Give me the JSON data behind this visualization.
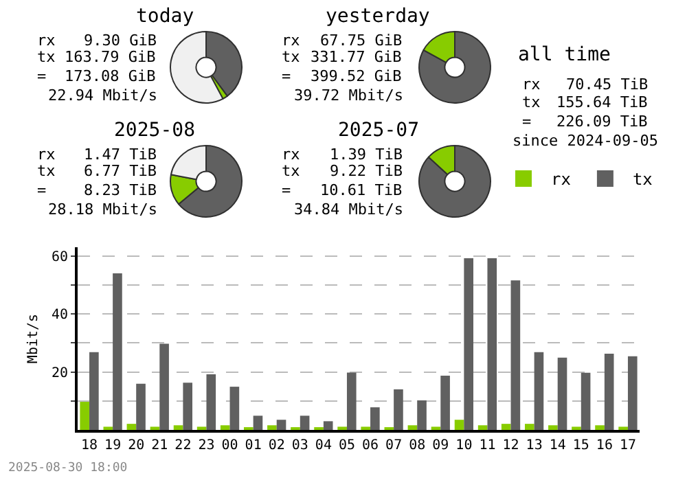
{
  "chart_data": [
    {
      "type": "donut",
      "title": "today",
      "categories": [
        null,
        null,
        null
      ],
      "values": [
        39.9,
        2.3,
        57.8
      ],
      "colors": [
        "#606060",
        "#88cc00",
        "#f0f0f0"
      ],
      "annotations": [
        "rx 9.30 GiB",
        "tx 163.79 GiB",
        "= 173.08 GiB",
        "22.94 Mbit/s"
      ]
    },
    {
      "type": "donut",
      "title": "yesterday",
      "categories": [
        null,
        null
      ],
      "values": [
        83.0,
        17.0
      ],
      "colors": [
        "#606060",
        "#88cc00"
      ],
      "annotations": [
        "rx 67.75 GiB",
        "tx 331.77 GiB",
        "= 399.52 GiB",
        "39.72 Mbit/s"
      ]
    },
    {
      "type": "donut",
      "title": "2025-08",
      "categories": [
        null,
        null,
        null
      ],
      "values": [
        64.0,
        14.0,
        22.0
      ],
      "colors": [
        "#606060",
        "#88cc00",
        "#f0f0f0"
      ],
      "annotations": [
        "rx 1.47 TiB",
        "tx 6.77 TiB",
        "= 8.23 TiB",
        "28.18 Mbit/s"
      ]
    },
    {
      "type": "donut",
      "title": "2025-07",
      "categories": [
        null,
        null
      ],
      "values": [
        86.9,
        13.1
      ],
      "colors": [
        "#606060",
        "#88cc00"
      ],
      "annotations": [
        "rx 1.39 TiB",
        "tx 9.22 TiB",
        "= 10.61 TiB",
        "34.84 Mbit/s"
      ]
    },
    {
      "type": "other",
      "title": "all time",
      "annotations": [
        "rx 70.45 TiB",
        "tx 155.64 TiB",
        "= 226.09 TiB",
        "since 2024-09-05"
      ]
    },
    {
      "type": "bar",
      "ylabel": "Mbit/s",
      "categories": [
        "18",
        "19",
        "20",
        "21",
        "22",
        "23",
        "00",
        "01",
        "02",
        "03",
        "04",
        "05",
        "06",
        "07",
        "08",
        "09",
        "10",
        "11",
        "12",
        "13",
        "14",
        "15",
        "16",
        "17"
      ],
      "series": [
        {
          "name": "rx",
          "color": "#88cc00",
          "values": [
            9.7,
            1.1,
            2.1,
            1.1,
            1.6,
            1.1,
            1.6,
            0.6,
            1.6,
            0.6,
            0.6,
            1.1,
            1.1,
            0.6,
            1.6,
            1.1,
            3.5,
            1.6,
            2.1,
            2.1,
            1.6,
            1.1,
            1.6,
            1.1
          ]
        },
        {
          "name": "tx",
          "color": "#606060",
          "values": [
            26.8,
            54.0,
            15.9,
            29.7,
            16.3,
            19.2,
            14.9,
            4.9,
            3.5,
            4.9,
            3.0,
            19.8,
            7.8,
            14.0,
            10.2,
            18.7,
            59.2,
            59.2,
            51.6,
            26.8,
            24.9,
            19.7,
            26.3,
            25.4
          ]
        }
      ],
      "ylim": [
        0,
        63
      ],
      "yticks": [
        {
          "value": 10,
          "label": null
        },
        20,
        {
          "value": 30,
          "label": null
        },
        40,
        {
          "value": 50,
          "label": null
        },
        60
      ],
      "grid": "y",
      "legend": "top right",
      "annotations": [
        "2025-08-30 18:00"
      ]
    }
  ]
}
